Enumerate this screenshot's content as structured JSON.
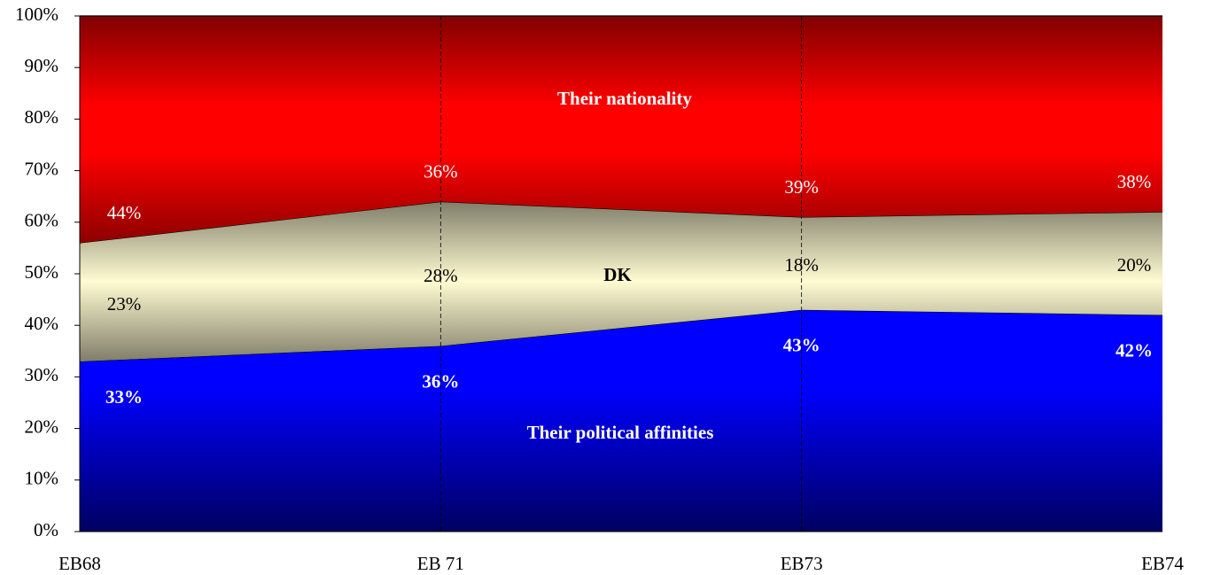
{
  "chart_data": {
    "type": "stacked-area",
    "categories": [
      "EB68",
      "EB 71",
      "EB73",
      "EB74"
    ],
    "series": [
      {
        "name": "Their political affinities",
        "color": "#0000ff",
        "values": [
          33,
          36,
          43,
          42
        ],
        "value_labels": [
          "33%",
          "36%",
          "43%",
          "42%"
        ]
      },
      {
        "name": "DK",
        "color": "#fffbd2",
        "values": [
          23,
          28,
          18,
          20
        ],
        "value_labels": [
          "23%",
          "28%",
          "18%",
          "20%"
        ]
      },
      {
        "name": "Their nationality",
        "color": "#ff0000",
        "values": [
          44,
          36,
          39,
          38
        ],
        "value_labels": [
          "44%",
          "36%",
          "39%",
          "38%"
        ]
      }
    ],
    "ylim": [
      0,
      100
    ],
    "yticks": [
      {
        "value": 0,
        "label": "0%"
      },
      {
        "value": 10,
        "label": "10%"
      },
      {
        "value": 20,
        "label": "20%"
      },
      {
        "value": 30,
        "label": "30%"
      },
      {
        "value": 40,
        "label": "40%"
      },
      {
        "value": 50,
        "label": "50%"
      },
      {
        "value": 60,
        "label": "60%"
      },
      {
        "value": 70,
        "label": "70%"
      },
      {
        "value": 80,
        "label": "80%"
      },
      {
        "value": 90,
        "label": "90%"
      },
      {
        "value": 100,
        "label": "100%"
      }
    ]
  }
}
